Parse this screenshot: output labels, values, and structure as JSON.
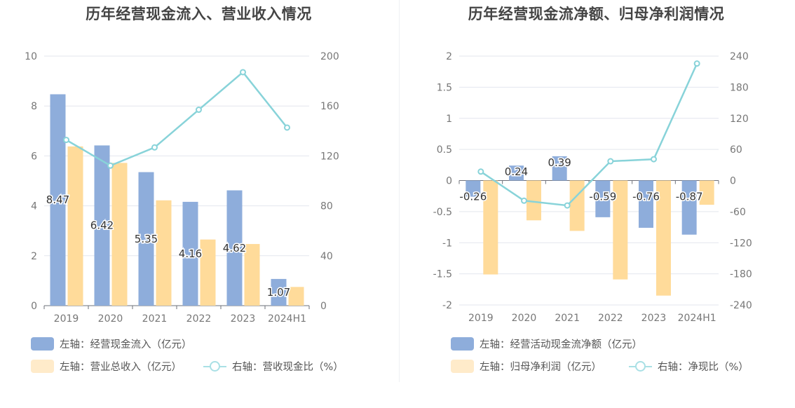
{
  "colors": {
    "bar_primary": "#8eaddb",
    "bar_secondary": "#ffdb9a",
    "bar_secondary_legend": "#ffebca",
    "bar_primary_legend": "#8eaddb",
    "line": "#88d3d9",
    "line_legend": "#a9e0e5",
    "grid": "#e3e6ee",
    "axis_text": "#777777"
  },
  "chart_data": [
    {
      "type": "bar",
      "title": "历年经营现金流入、营业收入情况",
      "categories": [
        "2019",
        "2020",
        "2021",
        "2022",
        "2023",
        "2024H1"
      ],
      "left_axis": {
        "ylim": [
          0,
          10
        ],
        "ticks": [
          "0",
          "2",
          "4",
          "6",
          "8",
          "10"
        ]
      },
      "right_axis": {
        "ylim": [
          0,
          200
        ],
        "ticks": [
          "0",
          "40",
          "80",
          "120",
          "160",
          "200"
        ]
      },
      "series": [
        {
          "name": "左轴：经营现金流入（亿元）",
          "axis": "left",
          "type": "bar",
          "values": [
            8.47,
            6.42,
            5.35,
            4.16,
            4.62,
            1.07
          ],
          "labels": [
            "8.47",
            "6.42",
            "5.35",
            "4.16",
            "4.62",
            "1.07"
          ]
        },
        {
          "name": "左轴：营业总收入（亿元）",
          "axis": "left",
          "type": "bar",
          "values": [
            6.38,
            5.72,
            4.22,
            2.65,
            2.47,
            0.75
          ]
        },
        {
          "name": "右轴：营收现金比（%）",
          "axis": "right",
          "type": "line",
          "values": [
            132.8,
            112.2,
            126.8,
            157.0,
            187.1,
            142.7
          ]
        }
      ],
      "grid": true
    },
    {
      "type": "bar",
      "title": "历年经营现金流净额、归母净利润情况",
      "categories": [
        "2019",
        "2020",
        "2021",
        "2022",
        "2023",
        "2024H1"
      ],
      "left_axis": {
        "ylim": [
          -2,
          2
        ],
        "ticks": [
          "-2",
          "-1.5",
          "-1",
          "-0.5",
          "0",
          "0.5",
          "1",
          "1.5",
          "2"
        ]
      },
      "right_axis": {
        "ylim": [
          -240,
          240
        ],
        "ticks": [
          "-240",
          "-180",
          "-120",
          "-60",
          "0",
          "60",
          "120",
          "180",
          "240"
        ]
      },
      "series": [
        {
          "name": "左轴：经营活动现金流净额（亿元）",
          "axis": "left",
          "type": "bar",
          "values": [
            -0.26,
            0.24,
            0.39,
            -0.59,
            -0.76,
            -0.87
          ],
          "labels": [
            "-0.26",
            "0.24",
            "0.39",
            "-0.59",
            "-0.76",
            "-0.87"
          ]
        },
        {
          "name": "左轴：归母净利润（亿元）",
          "axis": "left",
          "type": "bar",
          "values": [
            -1.51,
            -0.64,
            -0.81,
            -1.59,
            -1.85,
            -0.39
          ]
        },
        {
          "name": "右轴：净现比（%）",
          "axis": "right",
          "type": "line",
          "values": [
            17.2,
            -38.9,
            -48.1,
            37.1,
            41.1,
            225.6
          ]
        }
      ],
      "grid": true
    }
  ]
}
